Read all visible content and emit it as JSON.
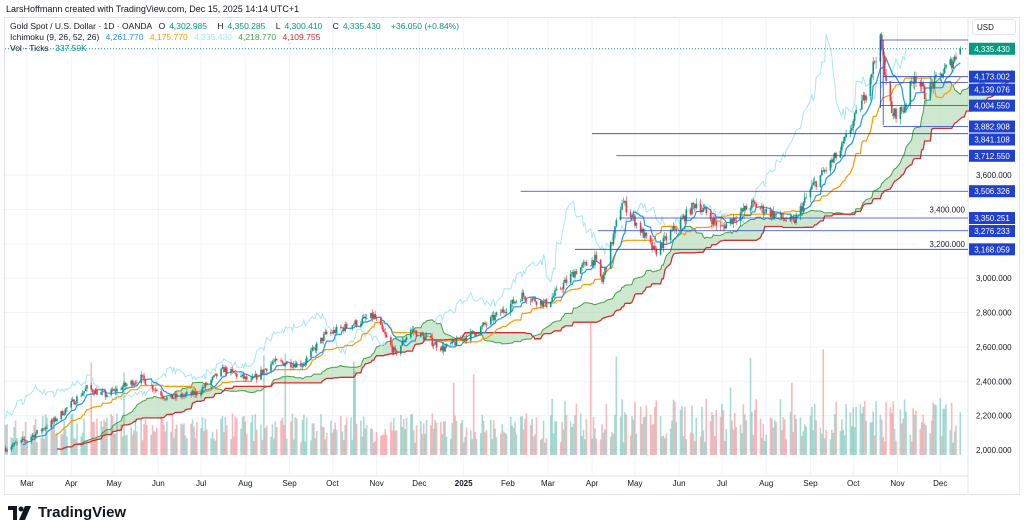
{
  "credit": "LarsHoffmann created with TradingView.com, Dec 15, 2025 14:14 UTC+1",
  "legend": {
    "symbol": "Gold Spot / U.S. Dollar · 1D · OANDA",
    "o_label": "O",
    "o": "4,302.985",
    "h_label": "H",
    "h": "4,350.285",
    "l_label": "L",
    "l": "4,300.410",
    "c_label": "C",
    "c": "4,335.430",
    "change": "+36.050 (+0.84%)",
    "ichimoku_name": "Ichimoku (9, 26, 52, 26)",
    "ichimoku_values": [
      "4,261.770",
      "4,175.770",
      "4,335.430",
      "4,218.770",
      "4,109.755"
    ],
    "vol_name": "Vol · Ticks",
    "vol_value": "337.59K"
  },
  "currency": "USD",
  "footer": {
    "brand": "TradingView"
  },
  "colors": {
    "up": "#089981",
    "down": "#f23645",
    "tenkan": "#2196f3",
    "kijun": "#ff9800",
    "chikou": "#a7e6f5",
    "spanA": "#43a047",
    "spanB": "#d32f2f",
    "cloud": "#a5d6a7",
    "level": "#2040d0",
    "last": "#089981"
  },
  "chart_data": {
    "type": "candlestick",
    "title": "Gold Spot / U.S. Dollar · 1D · OANDA",
    "ylim": [
      2000,
      4400
    ],
    "y_ticks": [
      "2,000.000",
      "2,200.000",
      "2,400.000",
      "2,600.000",
      "2,800.000",
      "3,000.000",
      "3,200.000",
      "3,400.000",
      "3,600.000"
    ],
    "y_tick_values": [
      2000,
      2200,
      2400,
      2600,
      2800,
      3000,
      3200,
      3400,
      3600
    ],
    "x_ticks": [
      "Mar",
      "Apr",
      "May",
      "Jun",
      "Jul",
      "Aug",
      "Sep",
      "Oct",
      "Nov",
      "Dec",
      "2025",
      "Feb",
      "Mar",
      "Apr",
      "May",
      "Jun",
      "Jul",
      "Aug",
      "Sep",
      "Oct",
      "Nov",
      "Dec"
    ],
    "x_tick_dates": [
      "2024-03-01",
      "2024-04-01",
      "2024-05-01",
      "2024-06-01",
      "2024-07-01",
      "2024-08-01",
      "2024-09-01",
      "2024-10-01",
      "2024-11-01",
      "2024-12-01",
      "2025-01-01",
      "2025-02-01",
      "2025-03-01",
      "2025-04-01",
      "2025-05-01",
      "2025-06-01",
      "2025-07-01",
      "2025-08-01",
      "2025-09-01",
      "2025-10-01",
      "2025-11-01",
      "2025-12-01"
    ],
    "price_anchors": [
      [
        "2024-02-15",
        2010
      ],
      [
        "2024-03-01",
        2060
      ],
      [
        "2024-03-20",
        2170
      ],
      [
        "2024-04-12",
        2360
      ],
      [
        "2024-04-25",
        2320
      ],
      [
        "2024-05-20",
        2420
      ],
      [
        "2024-06-07",
        2300
      ],
      [
        "2024-06-28",
        2330
      ],
      [
        "2024-07-17",
        2470
      ],
      [
        "2024-08-05",
        2400
      ],
      [
        "2024-08-20",
        2510
      ],
      [
        "2024-09-10",
        2500
      ],
      [
        "2024-09-26",
        2670
      ],
      [
        "2024-10-30",
        2780
      ],
      [
        "2024-11-14",
        2560
      ],
      [
        "2024-11-25",
        2700
      ],
      [
        "2024-12-18",
        2590
      ],
      [
        "2025-01-10",
        2690
      ],
      [
        "2025-02-11",
        2900
      ],
      [
        "2025-02-28",
        2850
      ],
      [
        "2025-03-20",
        3040
      ],
      [
        "2025-04-03",
        3110
      ],
      [
        "2025-04-08",
        2980
      ],
      [
        "2025-04-22",
        3450
      ],
      [
        "2025-05-15",
        3150
      ],
      [
        "2025-06-13",
        3440
      ],
      [
        "2025-06-30",
        3290
      ],
      [
        "2025-07-22",
        3430
      ],
      [
        "2025-08-20",
        3320
      ],
      [
        "2025-09-02",
        3530
      ],
      [
        "2025-09-22",
        3740
      ],
      [
        "2025-10-08",
        4040
      ],
      [
        "2025-10-20",
        4380
      ],
      [
        "2025-10-28",
        3950
      ],
      [
        "2025-11-05",
        3980
      ],
      [
        "2025-11-13",
        4190
      ],
      [
        "2025-11-20",
        4070
      ],
      [
        "2025-12-05",
        4220
      ],
      [
        "2025-12-11",
        4280
      ],
      [
        "2025-12-15",
        4335
      ]
    ],
    "levels": [
      {
        "label": "4,335.430",
        "value": 4335.43,
        "type": "last"
      },
      {
        "label": "4,173.002",
        "value": 4173.002,
        "from": "2025-10-22"
      },
      {
        "label": "4,139.076",
        "value": 4139.076,
        "from": "2025-10-20"
      },
      {
        "label": "4,004.550",
        "value": 4004.55,
        "from": "2025-10-20"
      },
      {
        "label": "3,882.908",
        "value": 3882.908,
        "from": "2025-10-22"
      },
      {
        "label": "3,841.108",
        "value": 3841.108,
        "from": "2025-04-01"
      },
      {
        "label": "3,712.550",
        "value": 3712.55,
        "from": "2025-04-18"
      },
      {
        "label": "3,506.326",
        "value": 3506.326,
        "from": "2025-02-10"
      },
      {
        "label": "3,350.251",
        "value": 3350.251,
        "from": "2025-04-20"
      },
      {
        "label": "3,276.233",
        "value": 3276.233,
        "from": "2025-04-05"
      },
      {
        "label": "3,168.059",
        "value": 3168.059,
        "from": "2025-03-20"
      }
    ],
    "indicators": [
      "Ichimoku (9, 26, 52, 26)",
      "Vol · Ticks"
    ]
  }
}
